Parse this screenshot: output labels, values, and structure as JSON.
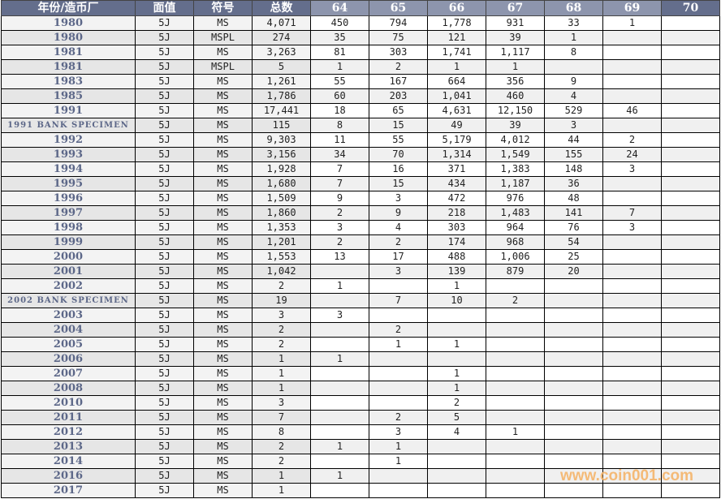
{
  "header": [
    "年份/造币厂",
    "面值",
    "符号",
    "总数",
    "64",
    "65",
    "66",
    "67",
    "68",
    "69",
    "70"
  ],
  "rows": [
    [
      "1980",
      "5J",
      "MS",
      "4,071",
      "450",
      "794",
      "1,778",
      "931",
      "33",
      "1",
      ""
    ],
    [
      "1980",
      "5J",
      "MSPL",
      "274",
      "35",
      "75",
      "121",
      "39",
      "1",
      "",
      ""
    ],
    [
      "1981",
      "5J",
      "MS",
      "3,263",
      "81",
      "303",
      "1,741",
      "1,117",
      "8",
      "",
      ""
    ],
    [
      "1981",
      "5J",
      "MSPL",
      "5",
      "1",
      "2",
      "1",
      "1",
      "",
      "",
      ""
    ],
    [
      "1983",
      "5J",
      "MS",
      "1,261",
      "55",
      "167",
      "664",
      "356",
      "9",
      "",
      ""
    ],
    [
      "1985",
      "5J",
      "MS",
      "1,786",
      "60",
      "203",
      "1,041",
      "460",
      "4",
      "",
      ""
    ],
    [
      "1991",
      "5J",
      "MS",
      "17,441",
      "18",
      "65",
      "4,631",
      "12,150",
      "529",
      "46",
      ""
    ],
    [
      "1991 BANK SPECIMEN",
      "5J",
      "MS",
      "115",
      "8",
      "15",
      "49",
      "39",
      "3",
      "",
      ""
    ],
    [
      "1992",
      "5J",
      "MS",
      "9,303",
      "11",
      "55",
      "5,179",
      "4,012",
      "44",
      "2",
      ""
    ],
    [
      "1993",
      "5J",
      "MS",
      "3,156",
      "34",
      "70",
      "1,314",
      "1,549",
      "155",
      "24",
      ""
    ],
    [
      "1994",
      "5J",
      "MS",
      "1,928",
      "7",
      "16",
      "371",
      "1,383",
      "148",
      "3",
      ""
    ],
    [
      "1995",
      "5J",
      "MS",
      "1,680",
      "7",
      "15",
      "434",
      "1,187",
      "36",
      "",
      ""
    ],
    [
      "1996",
      "5J",
      "MS",
      "1,509",
      "9",
      "3",
      "472",
      "976",
      "48",
      "",
      ""
    ],
    [
      "1997",
      "5J",
      "MS",
      "1,860",
      "2",
      "9",
      "218",
      "1,483",
      "141",
      "7",
      ""
    ],
    [
      "1998",
      "5J",
      "MS",
      "1,353",
      "3",
      "4",
      "303",
      "964",
      "76",
      "3",
      ""
    ],
    [
      "1999",
      "5J",
      "MS",
      "1,201",
      "2",
      "2",
      "174",
      "968",
      "54",
      "",
      ""
    ],
    [
      "2000",
      "5J",
      "MS",
      "1,553",
      "13",
      "17",
      "488",
      "1,006",
      "25",
      "",
      ""
    ],
    [
      "2001",
      "5J",
      "MS",
      "1,042",
      "",
      "3",
      "139",
      "879",
      "20",
      "",
      ""
    ],
    [
      "2002",
      "5J",
      "MS",
      "2",
      "1",
      "",
      "1",
      "",
      "",
      "",
      ""
    ],
    [
      "2002 BANK SPECIMEN",
      "5J",
      "MS",
      "19",
      "",
      "7",
      "10",
      "2",
      "",
      "",
      ""
    ],
    [
      "2003",
      "5J",
      "MS",
      "3",
      "3",
      "",
      "",
      "",
      "",
      "",
      ""
    ],
    [
      "2004",
      "5J",
      "MS",
      "2",
      "",
      "2",
      "",
      "",
      "",
      "",
      ""
    ],
    [
      "2005",
      "5J",
      "MS",
      "2",
      "",
      "1",
      "1",
      "",
      "",
      "",
      ""
    ],
    [
      "2006",
      "5J",
      "MS",
      "1",
      "1",
      "",
      "",
      "",
      "",
      "",
      ""
    ],
    [
      "2007",
      "5J",
      "MS",
      "1",
      "",
      "",
      "1",
      "",
      "",
      "",
      ""
    ],
    [
      "2008",
      "5J",
      "MS",
      "1",
      "",
      "",
      "1",
      "",
      "",
      "",
      ""
    ],
    [
      "2010",
      "5J",
      "MS",
      "3",
      "",
      "",
      "2",
      "",
      "",
      "",
      ""
    ],
    [
      "2011",
      "5J",
      "MS",
      "7",
      "",
      "2",
      "5",
      "",
      "",
      "",
      ""
    ],
    [
      "2012",
      "5J",
      "MS",
      "8",
      "",
      "3",
      "4",
      "1",
      "",
      "",
      ""
    ],
    [
      "2013",
      "5J",
      "MS",
      "2",
      "1",
      "1",
      "",
      "",
      "",
      "",
      ""
    ],
    [
      "2014",
      "5J",
      "MS",
      "2",
      "",
      "1",
      "",
      "",
      "",
      "",
      ""
    ],
    [
      "2016",
      "5J",
      "MS",
      "1",
      "1",
      "",
      "",
      "",
      "",
      "",
      ""
    ],
    [
      "2017",
      "5J",
      "MS",
      "1",
      "",
      "",
      "",
      "",
      "",
      "",
      ""
    ]
  ],
  "watermark": "www.coin001.com",
  "colors": {
    "header_dark": "#646e8c",
    "header_light": "#8d95ad",
    "year_text": "#5c6788",
    "watermark": "#f5b56b"
  }
}
